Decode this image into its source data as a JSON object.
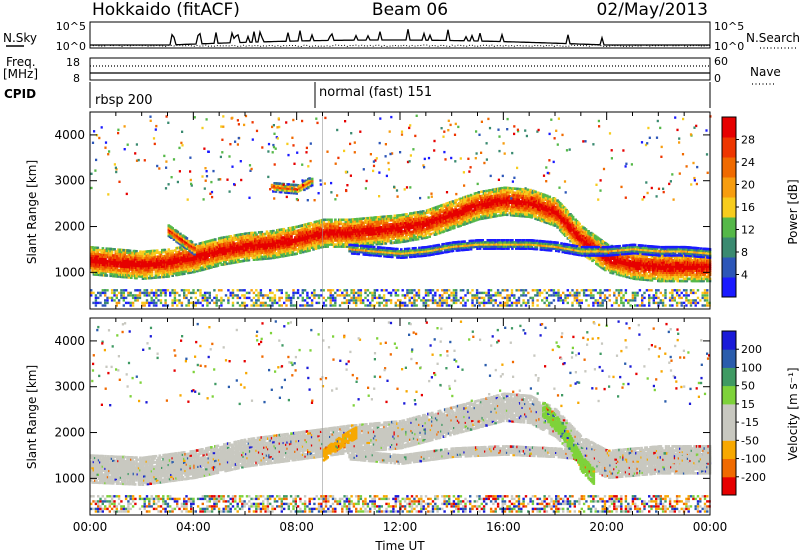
{
  "header": {
    "station": "Hokkaido (fitACF)",
    "beam": "Beam 06",
    "date": "02/May/2013"
  },
  "top_panels": {
    "nsky_label": "N.Sky",
    "nsearch_label": "N.Search",
    "nsky_ticks": [
      "10^5",
      "10^0"
    ],
    "nsearch_ticks": [
      "10^5",
      "10^0"
    ],
    "freq_label": "Freq.",
    "freq_unit": "[MHz]",
    "freq_ticks": [
      "18",
      "8"
    ],
    "nave_label": "Nave",
    "nave_ticks": [
      "60",
      "0"
    ],
    "cpid_label": "CPID",
    "cpid_segments": [
      {
        "label": "rbsp 200",
        "start_hour": 0
      },
      {
        "label": "normal (fast) 151",
        "start_hour": 9
      }
    ]
  },
  "colors": {
    "power": [
      "#1a1aff",
      "#2c56b8",
      "#3a8a70",
      "#55b848",
      "#f7cc1d",
      "#f79d0f",
      "#f06a00",
      "#ee3600",
      "#e60000"
    ],
    "velocity": [
      "#e60000",
      "#f06a00",
      "#f7a800",
      "#c8c8c0",
      "#c8c8c0",
      "#7ed23a",
      "#3f9a63",
      "#2a5cac",
      "#1a1ad8"
    ]
  },
  "chart_data": [
    {
      "type": "heatmap",
      "panel": "power",
      "ylabel": "Slant Range [km]",
      "xlim_hours": [
        0,
        24
      ],
      "ylim": [
        200,
        4500
      ],
      "y_ticks": [
        1000,
        2000,
        3000,
        4000
      ],
      "colorbar_label": "Power [dB]",
      "colorbar_ticks": [
        "4",
        "8",
        "12",
        "16",
        "20",
        "24",
        "28"
      ],
      "bands": [
        {
          "points": [
            [
              0,
              1250
            ],
            [
              1,
              1200
            ],
            [
              2,
              1150
            ],
            [
              3,
              1200
            ],
            [
              4,
              1300
            ],
            [
              5,
              1450
            ],
            [
              6,
              1550
            ],
            [
              7,
              1600
            ],
            [
              8,
              1700
            ],
            [
              9,
              1850
            ],
            [
              10,
              1850
            ],
            [
              11,
              1900
            ],
            [
              12,
              1950
            ],
            [
              13,
              2050
            ],
            [
              14,
              2250
            ],
            [
              15,
              2450
            ],
            [
              16,
              2550
            ],
            [
              17,
              2500
            ],
            [
              18,
              2300
            ],
            [
              19,
              1700
            ],
            [
              20,
              1300
            ],
            [
              21,
              1150
            ],
            [
              22,
              1100
            ],
            [
              23,
              1100
            ],
            [
              24,
              1100
            ]
          ],
          "width": 380,
          "level": 9
        },
        {
          "points": [
            [
              10,
              1500
            ],
            [
              11,
              1450
            ],
            [
              12,
              1400
            ],
            [
              13,
              1450
            ],
            [
              14,
              1550
            ],
            [
              15,
              1600
            ],
            [
              16,
              1600
            ],
            [
              17,
              1600
            ],
            [
              18,
              1550
            ],
            [
              19,
              1450
            ],
            [
              20,
              1450
            ],
            [
              21,
              1500
            ],
            [
              22,
              1450
            ],
            [
              23,
              1450
            ],
            [
              24,
              1400
            ]
          ],
          "width": 120,
          "level": 5
        },
        {
          "points": [
            [
              3,
              1900
            ],
            [
              3.5,
              1700
            ],
            [
              4,
              1500
            ]
          ],
          "width": 150,
          "level": 8
        },
        {
          "points": [
            [
              7,
              2850
            ],
            [
              8,
              2800
            ],
            [
              8.6,
              3000
            ]
          ],
          "width": 120,
          "level": 7
        }
      ]
    },
    {
      "type": "heatmap",
      "panel": "velocity",
      "ylabel": "Slant Range [km]",
      "xlabel": "Time UT",
      "xlim_hours": [
        0,
        24
      ],
      "ylim": [
        200,
        4500
      ],
      "y_ticks": [
        1000,
        2000,
        3000,
        4000
      ],
      "x_ticks": [
        "00:00",
        "04:00",
        "08:00",
        "12:00",
        "16:00",
        "20:00",
        "00:00"
      ],
      "colorbar_label": "Velocity [m s⁻¹]",
      "colorbar_ticks": [
        "-200",
        "-100",
        "-50",
        "-15",
        "15",
        "50",
        "100",
        "200"
      ],
      "bands": [
        {
          "points": [
            [
              0,
              1200
            ],
            [
              2,
              1150
            ],
            [
              4,
              1300
            ],
            [
              6,
              1550
            ],
            [
              8,
              1700
            ],
            [
              10,
              1850
            ],
            [
              12,
              1950
            ],
            [
              14,
              2250
            ],
            [
              16,
              2550
            ],
            [
              17,
              2500
            ],
            [
              18,
              2200
            ],
            [
              19,
              1600
            ],
            [
              20,
              1300
            ],
            [
              22,
              1400
            ],
            [
              24,
              1400
            ]
          ],
          "width": 380,
          "level": 4
        },
        {
          "points": [
            [
              10,
              1500
            ],
            [
              12,
              1400
            ],
            [
              14,
              1550
            ],
            [
              16,
              1600
            ],
            [
              18,
              1550
            ],
            [
              20,
              1450
            ],
            [
              22,
              1450
            ],
            [
              24,
              1400
            ]
          ],
          "width": 120,
          "level": 4
        },
        {
          "points": [
            [
              17.5,
              2500
            ],
            [
              18.3,
              2000
            ],
            [
              19,
              1300
            ],
            [
              19.5,
              1000
            ]
          ],
          "width": 200,
          "level": 5
        },
        {
          "points": [
            [
              9,
              1500
            ],
            [
              9.7,
              1800
            ],
            [
              10.3,
              2000
            ]
          ],
          "width": 150,
          "level": 2
        }
      ]
    }
  ]
}
